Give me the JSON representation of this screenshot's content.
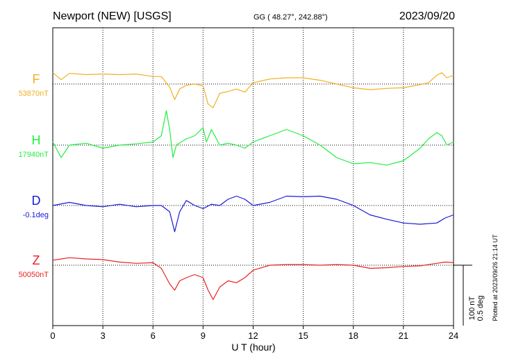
{
  "header": {
    "station": "Newport (NEW)  [USGS]",
    "coords": "GG ( 48.27°, 242.88°)",
    "date": "2023/09/20"
  },
  "plotted_at": "Plotted at 2023/09/26 21:14 UT",
  "scale": {
    "nt": "100 nT",
    "deg": "0.5 deg"
  },
  "chart_data": {
    "type": "line",
    "xlabel": "U T (hour)",
    "xlim": [
      0,
      24
    ],
    "xticks": [
      "0",
      "3",
      "6",
      "9",
      "12",
      "15",
      "18",
      "21",
      "24"
    ],
    "grid": true,
    "series": [
      {
        "name": "F",
        "baseline_label": "53870nT",
        "color": "#f0b020",
        "baseline": 0,
        "x": [
          0,
          0.5,
          1,
          2,
          3,
          4,
          5,
          6,
          6.5,
          7,
          7.3,
          7.6,
          8,
          8.5,
          9,
          9.3,
          9.6,
          10,
          10.5,
          11,
          11.5,
          12,
          13,
          14,
          15,
          16,
          17,
          18,
          19,
          20,
          21,
          22,
          22.5,
          23,
          23.3,
          23.6,
          24
        ],
        "y": [
          18,
          7,
          17,
          15,
          16,
          15,
          16,
          12,
          12,
          -5,
          -25,
          -8,
          -2,
          0,
          -3,
          -32,
          -38,
          -15,
          -12,
          -8,
          -13,
          2,
          8,
          10,
          10,
          6,
          0,
          -6,
          -9,
          -7,
          -6,
          -1,
          2,
          14,
          18,
          10,
          14
        ]
      },
      {
        "name": "H",
        "baseline_label": "17940nT",
        "color": "#20ee40",
        "baseline": 0,
        "x": [
          0,
          0.5,
          1,
          2,
          3,
          4,
          5,
          6,
          6.5,
          6.8,
          7,
          7.2,
          7.4,
          8,
          8.5,
          9,
          9.2,
          9.5,
          10,
          10.5,
          11,
          11.5,
          12,
          13,
          14,
          15,
          16,
          17,
          18,
          19,
          20,
          21,
          22,
          22.5,
          23,
          23.3,
          23.6,
          24
        ],
        "y": [
          5,
          -20,
          0,
          3,
          -5,
          0,
          2,
          5,
          15,
          55,
          25,
          -20,
          0,
          10,
          15,
          28,
          5,
          25,
          0,
          3,
          0,
          -5,
          5,
          15,
          25,
          15,
          0,
          -20,
          -30,
          -28,
          -32,
          -25,
          -5,
          10,
          20,
          15,
          0,
          5
        ]
      },
      {
        "name": "D",
        "baseline_label": "-0.1deg",
        "color": "#1818d8",
        "baseline": 0,
        "x": [
          0,
          1,
          2,
          3,
          4,
          5,
          6,
          6.5,
          7,
          7.3,
          7.6,
          8,
          8.5,
          9,
          9.5,
          10,
          10.5,
          11,
          11.5,
          12,
          13,
          14,
          15,
          16,
          17,
          18,
          19,
          20,
          21,
          22,
          23,
          23.5,
          24
        ],
        "y": [
          0,
          5,
          0,
          -2,
          2,
          -2,
          0,
          0,
          -10,
          -42,
          -10,
          8,
          0,
          -5,
          2,
          0,
          10,
          15,
          10,
          0,
          5,
          15,
          14,
          15,
          10,
          0,
          -15,
          -22,
          -28,
          -30,
          -28,
          -20,
          -15
        ]
      },
      {
        "name": "Z",
        "baseline_label": "50050nT",
        "color": "#e82020",
        "baseline": 0,
        "x": [
          0,
          0.5,
          1,
          2,
          3,
          4,
          5,
          6,
          6.5,
          7,
          7.3,
          7.6,
          8,
          8.5,
          9,
          9.3,
          9.6,
          10,
          10.5,
          11,
          11.5,
          12,
          13,
          14,
          15,
          16,
          17,
          18,
          19,
          20,
          21,
          22,
          23,
          23.5,
          24
        ],
        "y": [
          8,
          10,
          12,
          10,
          9,
          5,
          3,
          4,
          -5,
          -30,
          -40,
          -25,
          -20,
          -15,
          -20,
          -40,
          -55,
          -35,
          -25,
          -28,
          -20,
          -8,
          0,
          1,
          1,
          0,
          1,
          0,
          -5,
          -4,
          -2,
          -1,
          3,
          5,
          4
        ]
      }
    ]
  }
}
